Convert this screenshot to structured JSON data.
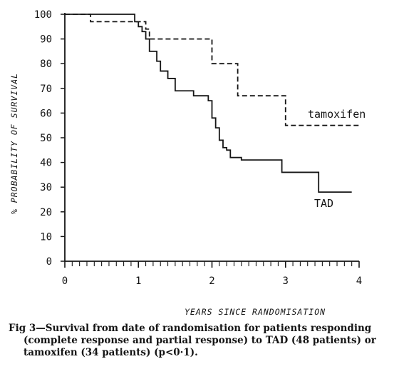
{
  "chart_data": {
    "type": "line",
    "title": "",
    "xlabel": "YEARS SINCE RANDOMISATION",
    "ylabel": "% PROBABILITY OF SURVIVAL",
    "xlim": [
      0,
      4
    ],
    "ylim": [
      0,
      100
    ],
    "x_ticks": [
      "0",
      "1",
      "2",
      "3",
      "4"
    ],
    "y_ticks": [
      "0",
      "10",
      "20",
      "30",
      "40",
      "50",
      "60",
      "70",
      "80",
      "90",
      "100"
    ],
    "grid": false,
    "step": true,
    "series": [
      {
        "name": "tamoxifen",
        "style": "dashed",
        "x": [
          0,
          0.35,
          1.0,
          1.1,
          1.15,
          1.9,
          2.0,
          2.35,
          2.9,
          3.0,
          3.2,
          4.0
        ],
        "y": [
          100,
          97,
          97,
          94,
          90,
          90,
          80,
          67,
          67,
          55,
          55,
          55
        ]
      },
      {
        "name": "TAD",
        "style": "solid",
        "x": [
          0,
          0.95,
          1.0,
          1.05,
          1.1,
          1.15,
          1.25,
          1.3,
          1.4,
          1.5,
          1.6,
          1.75,
          1.85,
          1.95,
          2.0,
          2.05,
          2.1,
          2.15,
          2.2,
          2.25,
          2.3,
          2.35,
          2.4,
          2.45,
          2.5,
          2.75,
          2.95,
          3.05,
          3.35,
          3.45,
          3.6,
          3.9
        ],
        "y": [
          100,
          97,
          95,
          93,
          90,
          85,
          81,
          77,
          74,
          69,
          69,
          67,
          67,
          65,
          58,
          54,
          49,
          46,
          45,
          42,
          42,
          42,
          41,
          41,
          41,
          41,
          36,
          36,
          36,
          28,
          28,
          28
        ]
      }
    ]
  },
  "caption": {
    "lines": [
      "Fig 3—Survival from date of randomisation for patients responding",
      "(complete response and partial response) to TAD (48 patients) or",
      "tamoxifen (34 patients) (p<0·1)."
    ]
  },
  "colors": {
    "ink": "#151515",
    "background": "#ffffff"
  }
}
